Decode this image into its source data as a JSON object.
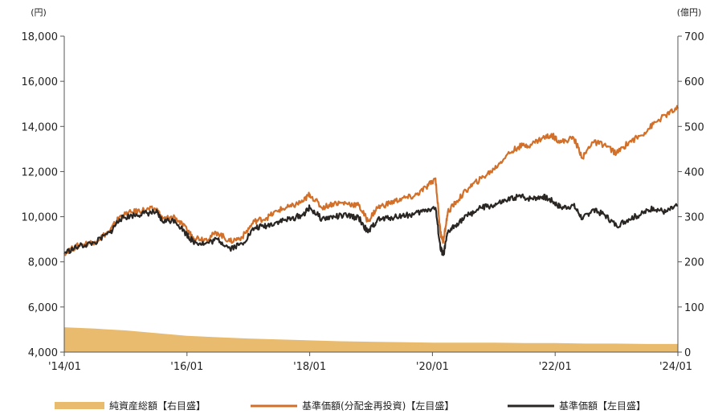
{
  "chart_data": {
    "type": "line",
    "left_axis": {
      "unit": "(円)",
      "ylim": [
        4000,
        18000
      ],
      "ticks": [
        4000,
        6000,
        8000,
        10000,
        12000,
        14000,
        16000,
        18000
      ],
      "tick_labels": [
        "4,000",
        "6,000",
        "8,000",
        "10,000",
        "12,000",
        "14,000",
        "16,000",
        "18,000"
      ]
    },
    "right_axis": {
      "unit": "(億円)",
      "ylim": [
        0,
        700
      ],
      "ticks": [
        0,
        100,
        200,
        300,
        400,
        500,
        600,
        700
      ],
      "tick_labels": [
        "0",
        "100",
        "200",
        "300",
        "400",
        "500",
        "600",
        "700"
      ]
    },
    "x_axis": {
      "xlim": [
        2014.0,
        2024.0
      ],
      "ticks": [
        2014,
        2016,
        2018,
        2020,
        2022,
        2024
      ],
      "tick_labels": [
        "'14/01",
        "'16/01",
        "'18/01",
        "'20/01",
        "'22/01",
        "'24/01"
      ]
    },
    "series": [
      {
        "name": "純資産総額【右目盛】",
        "type": "area",
        "axis": "right",
        "color": "#e8bb6e",
        "x": [
          2014.0,
          2014.5,
          2015.0,
          2015.5,
          2016.0,
          2016.5,
          2017.0,
          2017.5,
          2018.0,
          2018.5,
          2019.0,
          2019.5,
          2020.0,
          2020.5,
          2021.0,
          2021.5,
          2022.0,
          2022.5,
          2023.0,
          2023.5,
          2024.0
        ],
        "values": [
          55,
          52,
          48,
          42,
          36,
          33,
          30,
          28,
          26,
          24,
          23,
          22,
          21,
          21,
          21,
          20,
          20,
          19,
          19,
          18,
          18
        ]
      },
      {
        "name": "基準価額(分配金再投資)【左目盛】",
        "type": "line",
        "axis": "left",
        "color": "#d2702a",
        "x": [
          2014.0,
          2014.25,
          2014.5,
          2014.75,
          2014.9,
          2015.1,
          2015.3,
          2015.5,
          2015.6,
          2015.8,
          2016.0,
          2016.1,
          2016.3,
          2016.5,
          2016.7,
          2016.9,
          2017.1,
          2017.3,
          2017.5,
          2017.7,
          2017.9,
          2018.0,
          2018.2,
          2018.4,
          2018.6,
          2018.8,
          2018.95,
          2019.1,
          2019.3,
          2019.5,
          2019.7,
          2019.9,
          2020.05,
          2020.13,
          2020.18,
          2020.25,
          2020.4,
          2020.6,
          2020.8,
          2021.0,
          2021.2,
          2021.4,
          2021.6,
          2021.8,
          2021.95,
          2022.1,
          2022.3,
          2022.45,
          2022.6,
          2022.8,
          2023.0,
          2023.2,
          2023.4,
          2023.6,
          2023.8,
          2024.0
        ],
        "values": [
          8400,
          8750,
          8900,
          9400,
          10000,
          10200,
          10300,
          10350,
          9900,
          10000,
          9400,
          9100,
          9000,
          9300,
          8900,
          9100,
          9800,
          9950,
          10300,
          10450,
          10700,
          11000,
          10400,
          10600,
          10600,
          10500,
          9800,
          10400,
          10600,
          10800,
          10900,
          11300,
          11700,
          9300,
          8900,
          10200,
          10700,
          11300,
          11700,
          12100,
          12700,
          13100,
          13200,
          13500,
          13600,
          13300,
          13500,
          12600,
          13300,
          13200,
          12800,
          13300,
          13600,
          14100,
          14500,
          14800
        ]
      },
      {
        "name": "基準価額【左目盛】",
        "type": "line",
        "axis": "left",
        "color": "#2a2624",
        "x": [
          2014.0,
          2014.25,
          2014.5,
          2014.75,
          2014.9,
          2015.1,
          2015.3,
          2015.5,
          2015.6,
          2015.8,
          2016.0,
          2016.1,
          2016.3,
          2016.5,
          2016.7,
          2016.9,
          2017.1,
          2017.3,
          2017.5,
          2017.7,
          2017.9,
          2018.0,
          2018.2,
          2018.4,
          2018.6,
          2018.8,
          2018.95,
          2019.1,
          2019.3,
          2019.5,
          2019.7,
          2019.9,
          2020.05,
          2020.13,
          2020.18,
          2020.25,
          2020.4,
          2020.6,
          2020.8,
          2021.0,
          2021.2,
          2021.4,
          2021.6,
          2021.8,
          2021.95,
          2022.1,
          2022.3,
          2022.45,
          2022.6,
          2022.8,
          2023.0,
          2023.2,
          2023.4,
          2023.6,
          2023.8,
          2024.0
        ],
        "values": [
          8400,
          8700,
          8850,
          9300,
          9900,
          10050,
          10150,
          10200,
          9800,
          9850,
          9200,
          8900,
          8800,
          9000,
          8600,
          8800,
          9500,
          9600,
          9800,
          9900,
          10100,
          10400,
          9900,
          10000,
          10050,
          9950,
          9300,
          9850,
          9950,
          10050,
          10100,
          10300,
          10400,
          8600,
          8300,
          9300,
          9700,
          10100,
          10400,
          10500,
          10700,
          10900,
          10800,
          10900,
          10700,
          10400,
          10500,
          9900,
          10300,
          10100,
          9600,
          9900,
          10100,
          10400,
          10200,
          10500
        ]
      }
    ],
    "legend_position": "bottom"
  }
}
